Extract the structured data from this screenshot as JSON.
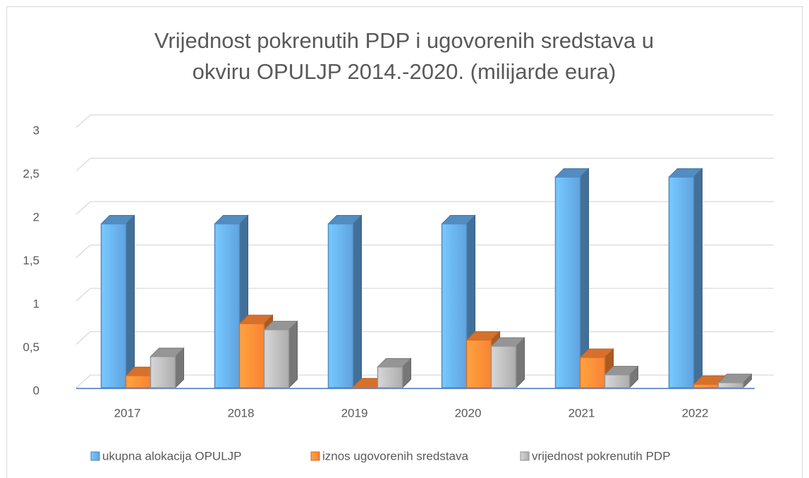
{
  "chart_data": {
    "type": "bar3d",
    "title": [
      "Vrijednost pokrenutih PDP i ugovorenih sredstava u",
      "okviru OPULJP 2014.-2020. (milijarde eura)"
    ],
    "categories": [
      "2017",
      "2018",
      "2019",
      "2020",
      "2021",
      "2022"
    ],
    "series": [
      {
        "name": "ukupna alokacija OPULJP",
        "color": "#5b9bd5",
        "values": [
          1.89,
          1.89,
          1.89,
          1.89,
          2.43,
          2.43
        ]
      },
      {
        "name": "iznos ugovorenih sredstava",
        "color": "#ed7d31",
        "values": [
          0.14,
          0.74,
          0.01,
          0.55,
          0.35,
          0.04
        ]
      },
      {
        "name": "vrijednost pokrenutih PDP",
        "color": "#a5a5a5",
        "values": [
          0.36,
          0.67,
          0.24,
          0.48,
          0.15,
          0.06
        ]
      }
    ],
    "ylim": [
      0,
      3
    ],
    "yticks": [
      0,
      {
        "value": 0.5,
        "label": "0,5"
      },
      1,
      {
        "value": 1.5,
        "label": "1,5"
      },
      2,
      {
        "value": 2.5,
        "label": "2,5"
      },
      3
    ],
    "grid": true,
    "legend": "bottom"
  }
}
